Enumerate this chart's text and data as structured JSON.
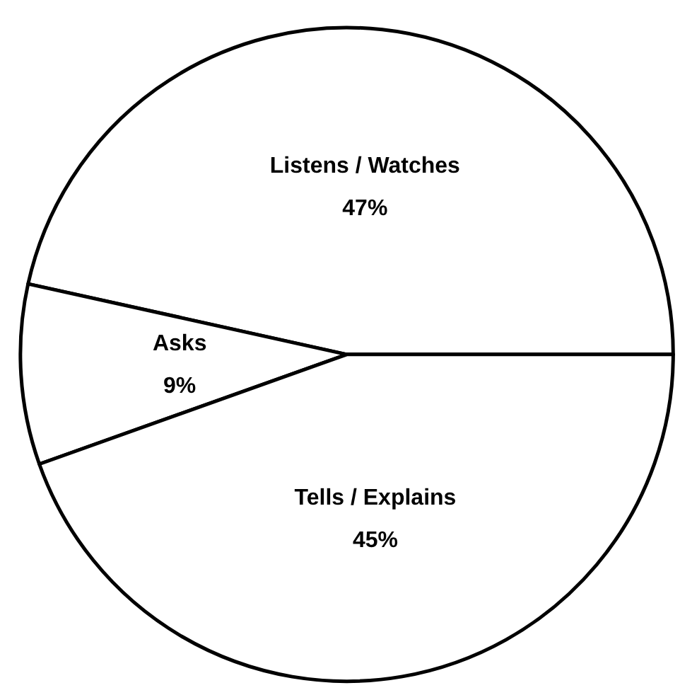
{
  "chart_data": {
    "type": "pie",
    "categories": [
      "Listens / Watches",
      "Asks",
      "Tells / Explains"
    ],
    "values": [
      47,
      9,
      45
    ],
    "value_labels": [
      "47%",
      "9%",
      "45%"
    ],
    "colors": [
      "#ffffff",
      "#ffffff",
      "#ffffff"
    ],
    "legend": false
  }
}
